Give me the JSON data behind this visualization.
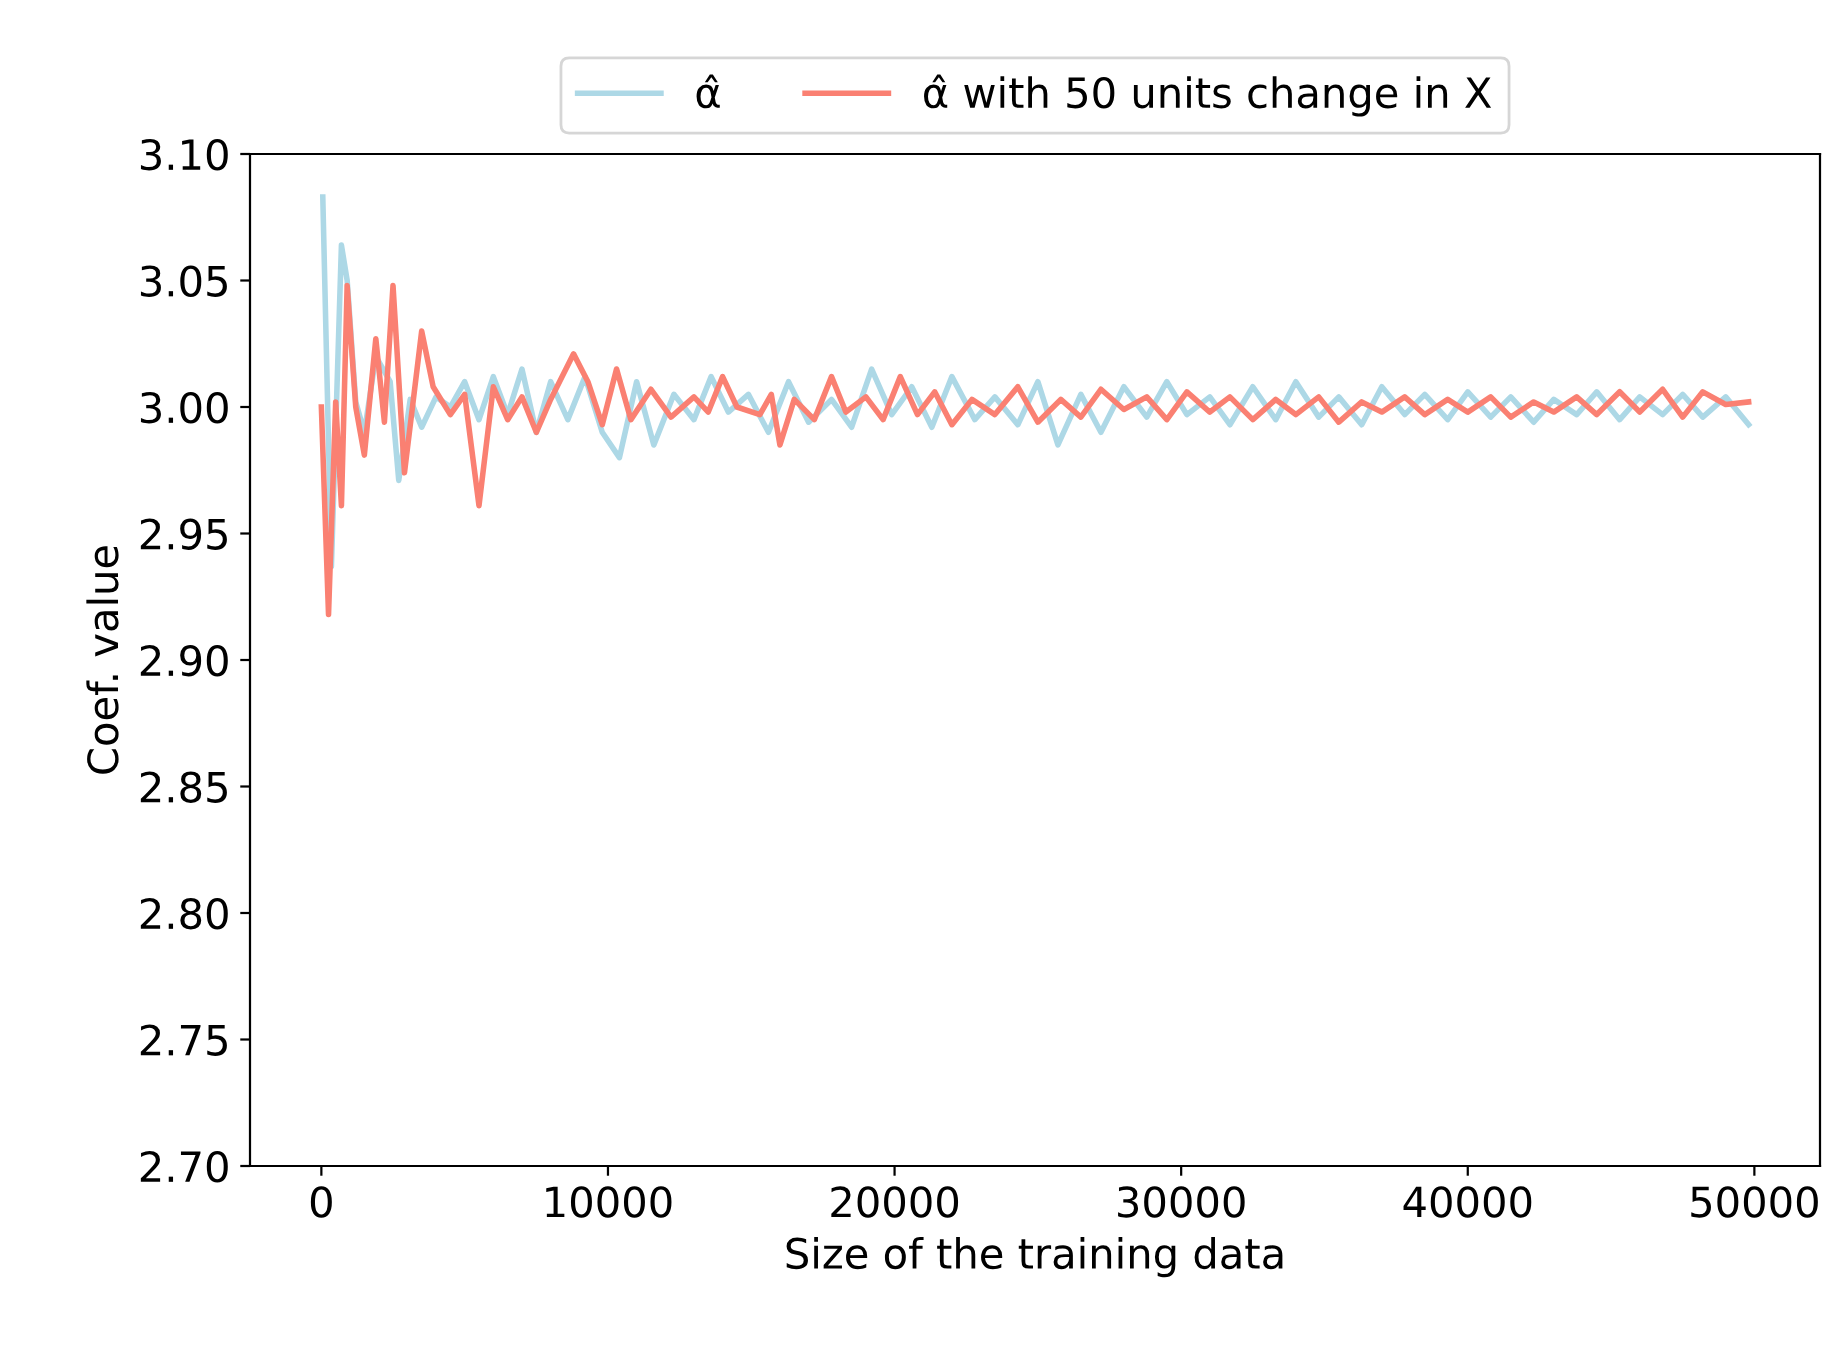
{
  "chart_data": {
    "type": "line",
    "xlabel": "Size of the training data",
    "ylabel": "Coef. value",
    "xlim": [
      -2490,
      52290
    ],
    "ylim": [
      2.7,
      3.1
    ],
    "xticks": [
      0,
      10000,
      20000,
      30000,
      40000,
      50000
    ],
    "yticks": [
      {
        "value": 2.7,
        "label": "2.70"
      },
      {
        "value": 2.75,
        "label": "2.75"
      },
      {
        "value": 2.8,
        "label": "2.80"
      },
      {
        "value": 2.85,
        "label": "2.85"
      },
      {
        "value": 2.9,
        "label": "2.90"
      },
      {
        "value": 2.95,
        "label": "2.95"
      },
      {
        "value": 3.0,
        "label": "3.00"
      },
      {
        "value": 3.05,
        "label": "3.05"
      },
      {
        "value": 3.1,
        "label": "3.10"
      }
    ],
    "grid": false,
    "legend": "top",
    "line_style": "solid",
    "series": [
      {
        "name": "α̂",
        "color": "#add8e6",
        "x": [
          50,
          350,
          700,
          900,
          1200,
          1500,
          1900,
          2400,
          2700,
          3100,
          3500,
          4000,
          4500,
          5000,
          5500,
          6000,
          6500,
          7000,
          7500,
          8000,
          8600,
          9200,
          9800,
          10400,
          11000,
          11600,
          12300,
          13000,
          13600,
          14200,
          14900,
          15600,
          16300,
          17000,
          17800,
          18500,
          19200,
          19900,
          20600,
          21300,
          22000,
          22800,
          23500,
          24300,
          25000,
          25700,
          26500,
          27200,
          28000,
          28800,
          29500,
          30200,
          31000,
          31700,
          32500,
          33300,
          34000,
          34800,
          35500,
          36300,
          37000,
          37800,
          38500,
          39300,
          40000,
          40800,
          41500,
          42300,
          43000,
          43800,
          44500,
          45300,
          46000,
          46800,
          47500,
          48200,
          49000,
          49800
        ],
        "values": [
          3.083,
          2.937,
          3.064,
          3.05,
          3.002,
          2.99,
          3.02,
          3.01,
          2.971,
          3.003,
          2.992,
          3.004,
          3.0,
          3.01,
          2.995,
          3.012,
          2.997,
          3.015,
          2.99,
          3.01,
          2.995,
          3.012,
          2.99,
          2.98,
          3.01,
          2.985,
          3.005,
          2.995,
          3.012,
          2.998,
          3.005,
          2.99,
          3.01,
          2.994,
          3.003,
          2.992,
          3.015,
          2.997,
          3.008,
          2.992,
          3.012,
          2.995,
          3.004,
          2.993,
          3.01,
          2.985,
          3.005,
          2.99,
          3.008,
          2.996,
          3.01,
          2.997,
          3.004,
          2.993,
          3.008,
          2.995,
          3.01,
          2.996,
          3.004,
          2.993,
          3.008,
          2.997,
          3.005,
          2.995,
          3.006,
          2.996,
          3.004,
          2.994,
          3.003,
          2.997,
          3.006,
          2.995,
          3.004,
          2.997,
          3.005,
          2.996,
          3.004,
          2.993
        ]
      },
      {
        "name": "α̂ with 50 units change in X",
        "color": "#fa8072",
        "x": [
          0,
          250,
          500,
          700,
          900,
          1200,
          1500,
          1900,
          2200,
          2500,
          2900,
          3500,
          3900,
          4500,
          5000,
          5500,
          6000,
          6500,
          7000,
          7500,
          8000,
          8800,
          9300,
          9800,
          10300,
          10800,
          11500,
          12200,
          13000,
          13500,
          14000,
          14500,
          15300,
          15700,
          16000,
          16500,
          17200,
          17800,
          18300,
          19000,
          19600,
          20200,
          20800,
          21400,
          22000,
          22700,
          23500,
          24300,
          25000,
          25800,
          26500,
          27200,
          28000,
          28800,
          29500,
          30200,
          31000,
          31700,
          32500,
          33300,
          34000,
          34800,
          35500,
          36300,
          37000,
          37800,
          38500,
          39300,
          40000,
          40800,
          41500,
          42300,
          43000,
          43800,
          44500,
          45300,
          46000,
          46800,
          47500,
          48200,
          49000,
          49800
        ],
        "values": [
          3.0,
          2.918,
          3.002,
          2.961,
          3.048,
          3.0,
          2.981,
          3.027,
          2.994,
          3.048,
          2.974,
          3.03,
          3.008,
          2.997,
          3.005,
          2.961,
          3.008,
          2.995,
          3.004,
          2.99,
          3.003,
          3.021,
          3.01,
          2.993,
          3.015,
          2.995,
          3.007,
          2.996,
          3.004,
          2.998,
          3.012,
          3.0,
          2.997,
          3.005,
          2.985,
          3.003,
          2.995,
          3.012,
          2.998,
          3.004,
          2.995,
          3.012,
          2.997,
          3.006,
          2.993,
          3.003,
          2.997,
          3.008,
          2.994,
          3.003,
          2.996,
          3.007,
          2.999,
          3.004,
          2.995,
          3.006,
          2.998,
          3.004,
          2.995,
          3.003,
          2.997,
          3.004,
          2.994,
          3.002,
          2.998,
          3.004,
          2.997,
          3.003,
          2.998,
          3.004,
          2.996,
          3.002,
          2.998,
          3.004,
          2.997,
          3.006,
          2.998,
          3.007,
          2.996,
          3.006,
          3.001,
          3.002
        ]
      }
    ]
  }
}
